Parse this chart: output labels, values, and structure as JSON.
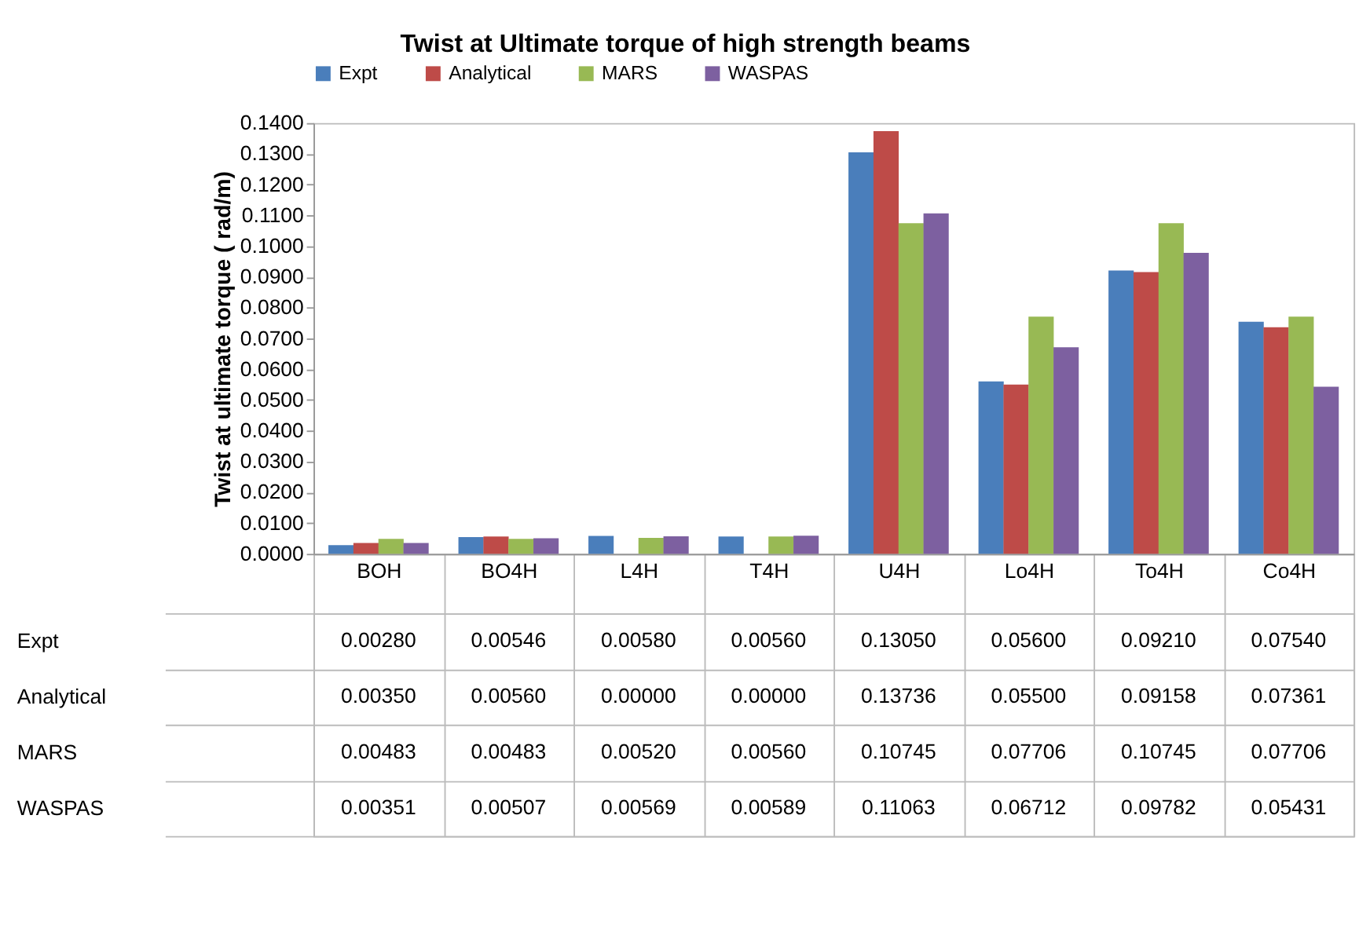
{
  "chart_data": {
    "type": "bar",
    "title": "Twist at Ultimate  torque of high strength beams",
    "ylabel": "Twist at ultimate torque ( rad/m)",
    "categories": [
      "BOH",
      "BO4H",
      "L4H",
      "T4H",
      "U4H",
      "Lo4H",
      "To4H",
      "Co4H"
    ],
    "series": [
      {
        "name": "Expt",
        "color": "#4a7ebb",
        "values": [
          0.0028,
          0.00546,
          0.0058,
          0.0056,
          0.1305,
          0.056,
          0.0921,
          0.0754
        ],
        "value_labels": [
          "0.00280",
          "0.00546",
          "0.00580",
          "0.00560",
          "0.13050",
          "0.05600",
          "0.09210",
          "0.07540"
        ]
      },
      {
        "name": "Analytical",
        "color": "#be4b48",
        "values": [
          0.0035,
          0.0056,
          0.0,
          0.0,
          0.13736,
          0.055,
          0.09158,
          0.07361
        ],
        "value_labels": [
          "0.00350",
          "0.00560",
          "0.00000",
          "0.00000",
          "0.13736",
          "0.05500",
          "0.09158",
          "0.07361"
        ]
      },
      {
        "name": "MARS",
        "color": "#98b954",
        "values": [
          0.00483,
          0.00483,
          0.0052,
          0.0056,
          0.10745,
          0.07706,
          0.10745,
          0.07706
        ],
        "value_labels": [
          "0.00483",
          "0.00483",
          "0.00520",
          "0.00560",
          "0.10745",
          "0.07706",
          "0.10745",
          "0.07706"
        ]
      },
      {
        "name": "WASPAS",
        "color": "#7d60a0",
        "values": [
          0.00351,
          0.00507,
          0.00569,
          0.00589,
          0.11063,
          0.06712,
          0.09782,
          0.05431
        ],
        "value_labels": [
          "0.00351",
          "0.00507",
          "0.00569",
          "0.00589",
          "0.11063",
          "0.06712",
          "0.09782",
          "0.05431"
        ]
      }
    ],
    "ylim": [
      0,
      0.14
    ],
    "yticks": [
      {
        "value": 0,
        "label": "0.0000"
      },
      {
        "value": 0.01,
        "label": "0.0100"
      },
      {
        "value": 0.02,
        "label": "0.0200"
      },
      {
        "value": 0.03,
        "label": "0.0300"
      },
      {
        "value": 0.04,
        "label": "0.0400"
      },
      {
        "value": 0.05,
        "label": "0.0500"
      },
      {
        "value": 0.06,
        "label": "0.0600"
      },
      {
        "value": 0.07,
        "label": "0.0700"
      },
      {
        "value": 0.08,
        "label": "0.0800"
      },
      {
        "value": 0.09,
        "label": "0.0900"
      },
      {
        "value": 0.1,
        "label": "0.1000"
      },
      {
        "value": 0.11,
        "label": "0.1100"
      },
      {
        "value": 0.12,
        "label": "0.1200"
      },
      {
        "value": 0.13,
        "label": "0.1300"
      },
      {
        "value": 0.14,
        "label": "0.1400"
      }
    ],
    "grid": false,
    "legend": "top"
  }
}
